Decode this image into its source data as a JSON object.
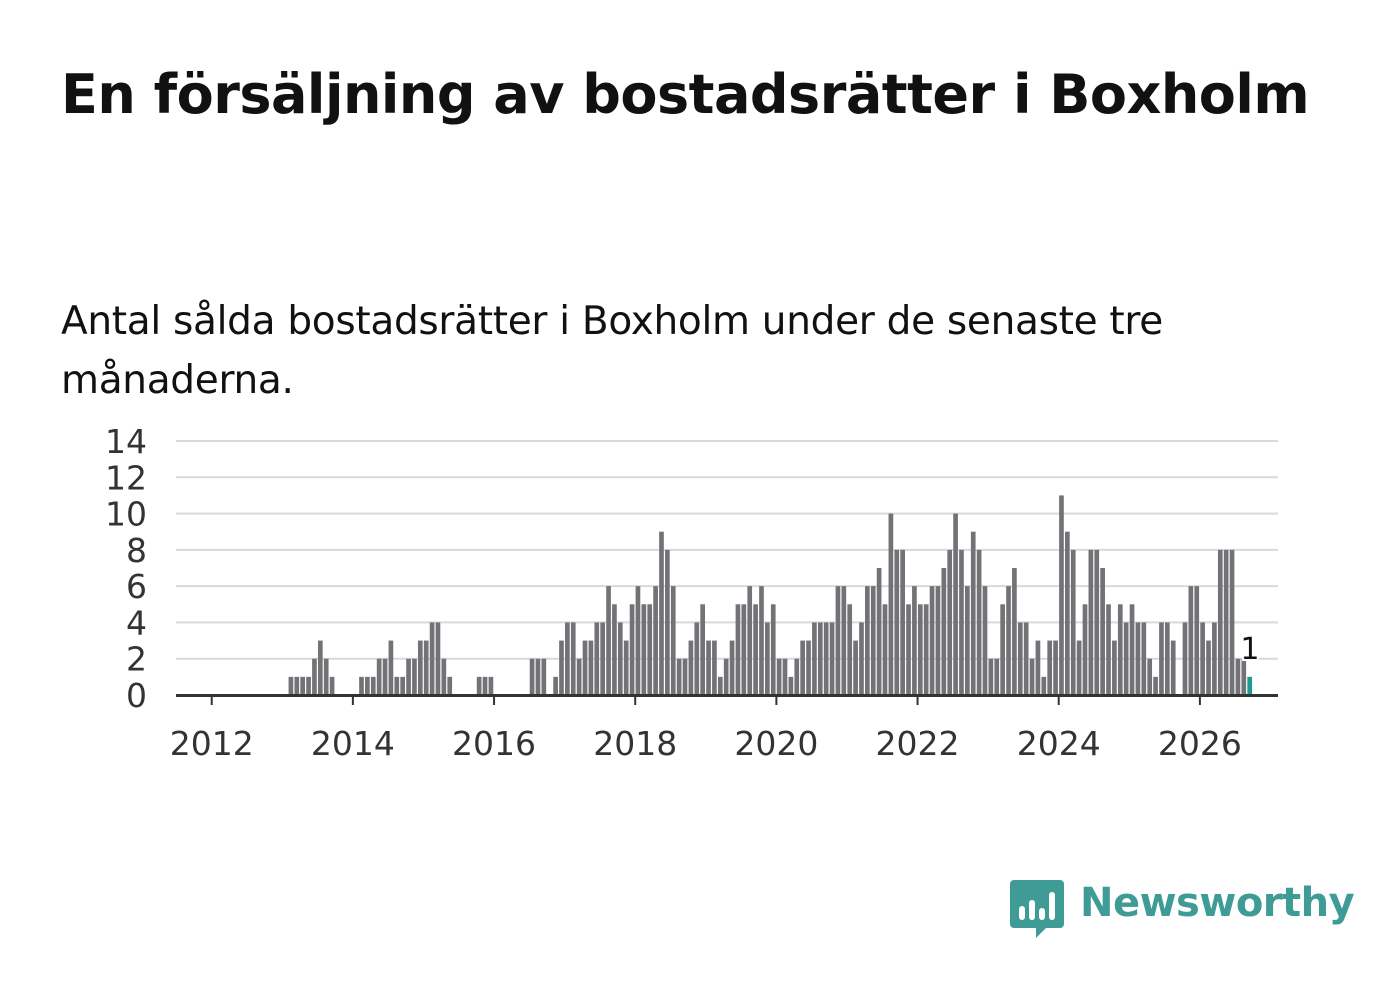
{
  "title": "En försäljning av bostadsrätter i Boxholm",
  "subtitle": "Antal sålda bostadsrätter i Boxholm under de senaste tre månaderna.",
  "brand": {
    "name": "Newsworthy",
    "color": "#3f9b96"
  },
  "colors": {
    "bar": "#737276",
    "highlight": "#1f9a92",
    "grid": "#d9d9d9",
    "axis": "#333333",
    "text": "#333333"
  },
  "chart_data": {
    "type": "bar",
    "title": "Antal sålda bostadsrätter i Boxholm under de senaste tre månaderna.",
    "xlabel": "",
    "ylabel": "",
    "ylim": [
      0,
      14
    ],
    "yticks": [
      0,
      2,
      4,
      6,
      8,
      10,
      12,
      14
    ],
    "xticks": [
      {
        "label": "2012",
        "year": 2012
      },
      {
        "label": "2014",
        "year": 2014
      },
      {
        "label": "2016",
        "year": 2016
      },
      {
        "label": "2018",
        "year": 2018
      },
      {
        "label": "2020",
        "year": 2020
      },
      {
        "label": "2022",
        "year": 2022
      },
      {
        "label": "2024",
        "year": 2024
      },
      {
        "label": "2026",
        "year": 2026
      }
    ],
    "start": {
      "year": 2011,
      "month": 8
    },
    "grid": true,
    "values": [
      0,
      0,
      0,
      0,
      0,
      0,
      0,
      0,
      0,
      0,
      0,
      0,
      0,
      0,
      0,
      0,
      0,
      0,
      1,
      1,
      1,
      1,
      2,
      3,
      2,
      1,
      0,
      0,
      0,
      0,
      1,
      1,
      1,
      2,
      2,
      3,
      1,
      1,
      2,
      2,
      3,
      3,
      4,
      4,
      2,
      1,
      0,
      0,
      0,
      0,
      1,
      1,
      1,
      0,
      0,
      0,
      0,
      0,
      0,
      2,
      2,
      2,
      0,
      1,
      3,
      4,
      4,
      2,
      3,
      3,
      4,
      4,
      6,
      5,
      4,
      3,
      5,
      6,
      5,
      5,
      6,
      9,
      8,
      6,
      2,
      2,
      3,
      4,
      5,
      3,
      3,
      1,
      2,
      3,
      5,
      5,
      6,
      5,
      6,
      4,
      5,
      2,
      2,
      1,
      2,
      3,
      3,
      4,
      4,
      4,
      4,
      6,
      6,
      5,
      3,
      4,
      6,
      6,
      7,
      5,
      10,
      8,
      8,
      5,
      6,
      5,
      5,
      6,
      6,
      7,
      8,
      10,
      8,
      6,
      9,
      8,
      6,
      2,
      2,
      5,
      6,
      7,
      4,
      4,
      2,
      3,
      1,
      3,
      3,
      11,
      9,
      8,
      3,
      5,
      8,
      8,
      7,
      5,
      3,
      5,
      4,
      5,
      4,
      4,
      2,
      1,
      4,
      4,
      3,
      0,
      4,
      6,
      6,
      4,
      3,
      4,
      8,
      8,
      8,
      2,
      2,
      1
    ],
    "highlight": {
      "index": 181,
      "value": 1,
      "label": "1"
    }
  }
}
